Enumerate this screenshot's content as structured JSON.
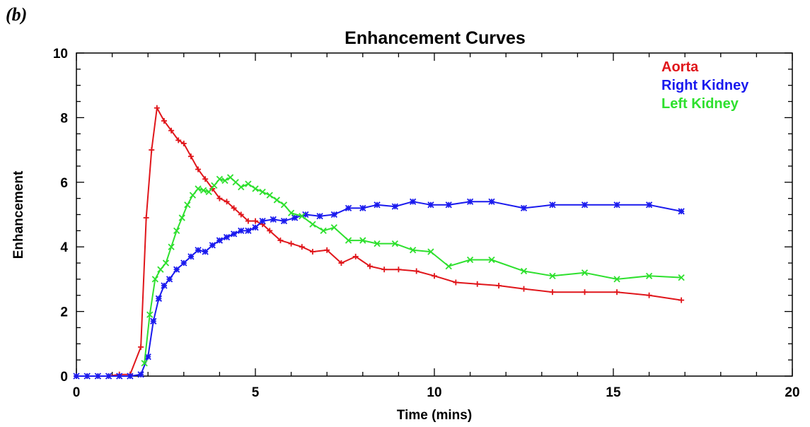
{
  "panel_label": "(b)",
  "chart_data": {
    "type": "line",
    "title": "Enhancement Curves",
    "xlabel": "Time (mins)",
    "ylabel": "Enhancement",
    "xlim": [
      0,
      20
    ],
    "ylim": [
      0,
      10
    ],
    "xticks": [
      0,
      5,
      10,
      15,
      20
    ],
    "yticks": [
      0,
      2,
      4,
      6,
      8,
      10
    ],
    "grid": false,
    "legend_position": "top-right",
    "series": [
      {
        "name": "Aorta",
        "color": "#e0161b",
        "marker": "plus",
        "x": [
          0.0,
          0.3,
          0.6,
          0.9,
          1.2,
          1.5,
          1.8,
          1.95,
          2.1,
          2.25,
          2.45,
          2.65,
          2.85,
          3.0,
          3.2,
          3.4,
          3.6,
          3.8,
          4.0,
          4.2,
          4.4,
          4.6,
          4.8,
          5.0,
          5.2,
          5.4,
          5.7,
          6.0,
          6.3,
          6.6,
          7.0,
          7.4,
          7.8,
          8.2,
          8.6,
          9.0,
          9.5,
          10.0,
          10.6,
          11.2,
          11.8,
          12.5,
          13.3,
          14.2,
          15.1,
          16.0,
          16.9
        ],
        "y": [
          0.0,
          0.0,
          0.0,
          0.0,
          0.05,
          0.05,
          0.9,
          4.9,
          7.0,
          8.3,
          7.9,
          7.6,
          7.3,
          7.2,
          6.8,
          6.4,
          6.1,
          5.8,
          5.5,
          5.4,
          5.2,
          5.0,
          4.8,
          4.8,
          4.7,
          4.5,
          4.2,
          4.1,
          4.0,
          3.85,
          3.9,
          3.5,
          3.7,
          3.4,
          3.3,
          3.3,
          3.25,
          3.1,
          2.9,
          2.85,
          2.8,
          2.7,
          2.6,
          2.6,
          2.6,
          2.5,
          2.35
        ]
      },
      {
        "name": "Right Kidney",
        "color": "#1a1aee",
        "marker": "star",
        "x": [
          0.0,
          0.3,
          0.6,
          0.9,
          1.2,
          1.5,
          1.8,
          2.0,
          2.15,
          2.3,
          2.45,
          2.6,
          2.8,
          3.0,
          3.2,
          3.4,
          3.6,
          3.8,
          4.0,
          4.2,
          4.4,
          4.6,
          4.8,
          5.0,
          5.2,
          5.5,
          5.8,
          6.1,
          6.4,
          6.8,
          7.2,
          7.6,
          8.0,
          8.4,
          8.9,
          9.4,
          9.9,
          10.4,
          11.0,
          11.6,
          12.5,
          13.3,
          14.2,
          15.1,
          16.0,
          16.9
        ],
        "y": [
          0.0,
          0.0,
          0.0,
          0.0,
          0.0,
          0.0,
          0.05,
          0.6,
          1.7,
          2.4,
          2.8,
          3.0,
          3.3,
          3.5,
          3.7,
          3.9,
          3.85,
          4.05,
          4.2,
          4.3,
          4.4,
          4.5,
          4.5,
          4.6,
          4.8,
          4.85,
          4.8,
          4.9,
          5.0,
          4.95,
          5.0,
          5.2,
          5.2,
          5.3,
          5.25,
          5.4,
          5.3,
          5.3,
          5.4,
          5.4,
          5.2,
          5.3,
          5.3,
          5.3,
          5.3,
          5.1
        ]
      },
      {
        "name": "Left Kidney",
        "color": "#2ee02e",
        "marker": "x",
        "x": [
          1.9,
          2.05,
          2.2,
          2.35,
          2.5,
          2.65,
          2.8,
          2.95,
          3.1,
          3.25,
          3.4,
          3.55,
          3.7,
          3.85,
          4.0,
          4.15,
          4.3,
          4.45,
          4.6,
          4.8,
          5.0,
          5.2,
          5.4,
          5.6,
          5.8,
          6.0,
          6.3,
          6.6,
          6.9,
          7.2,
          7.6,
          8.0,
          8.4,
          8.9,
          9.4,
          9.9,
          10.4,
          11.0,
          11.6,
          12.5,
          13.3,
          14.2,
          15.1,
          16.0,
          16.9
        ],
        "y": [
          0.4,
          1.9,
          3.0,
          3.3,
          3.5,
          4.0,
          4.5,
          4.9,
          5.3,
          5.6,
          5.8,
          5.75,
          5.7,
          5.9,
          6.1,
          6.05,
          6.15,
          6.0,
          5.85,
          5.95,
          5.8,
          5.7,
          5.6,
          5.45,
          5.3,
          5.05,
          4.95,
          4.7,
          4.5,
          4.6,
          4.2,
          4.2,
          4.1,
          4.1,
          3.9,
          3.85,
          3.4,
          3.6,
          3.6,
          3.25,
          3.1,
          3.2,
          3.0,
          3.1,
          3.05
        ]
      }
    ]
  }
}
